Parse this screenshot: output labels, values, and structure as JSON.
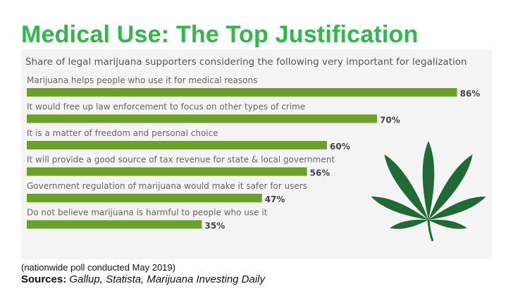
{
  "title": "Medical Use: The Top Justification",
  "note": "(nationwide poll conducted May 2019)",
  "sources_label": "Sources:",
  "sources_text": "Gallup, Statista, Marijuana Investing Daily",
  "colors": {
    "bar": "#6aa127",
    "title": "#2fb84b",
    "leaf": "#1f6a35",
    "panel": "#f4f4f4"
  },
  "chart_data": {
    "type": "bar",
    "orientation": "horizontal",
    "title": "Share of legal marijuana supporters considering the following very important for legalization",
    "categories": [
      "Marijuana helps people who use it for medical reasons",
      "It would free up law enforcement to focus on other types of crime",
      "It is a matter of freedom and personal choice",
      "It will provide a good source of tax revenue for state & local government",
      "Government regulation of marijuana would make it safer for users",
      "Do not believe marijuana is harmful to people who use it"
    ],
    "values": [
      86,
      70,
      60,
      56,
      47,
      35
    ],
    "value_labels": [
      "86%",
      "70%",
      "60%",
      "56%",
      "47%",
      "35%"
    ],
    "unit": "%",
    "xlim": [
      0,
      100
    ],
    "grid": false,
    "legend": "none"
  },
  "decoration": {
    "icon": "cannabis-leaf-icon"
  }
}
